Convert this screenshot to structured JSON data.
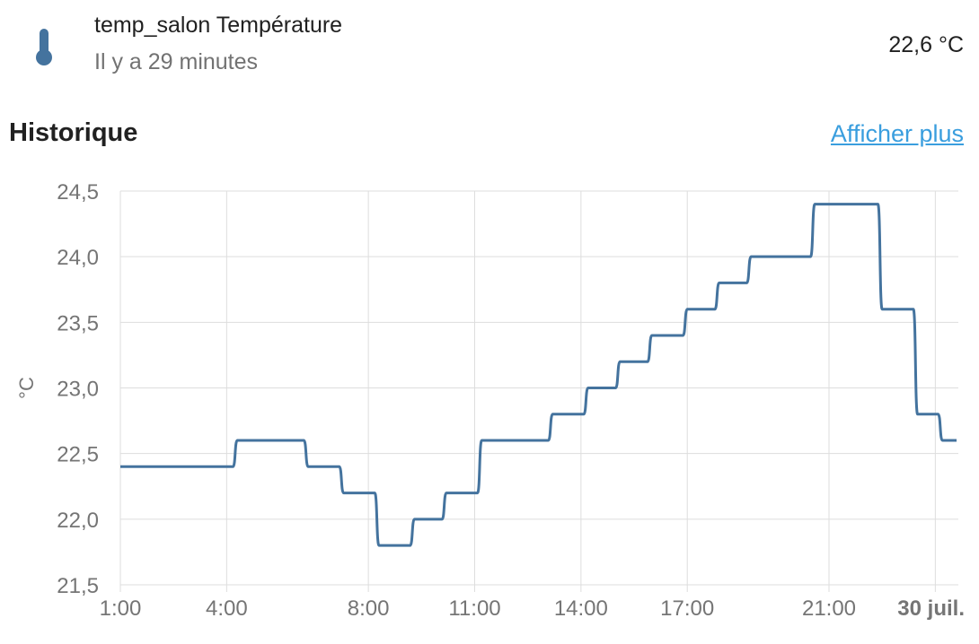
{
  "entity": {
    "name": "temp_salon Température",
    "last_changed": "Il y a 29 minutes",
    "state": "22,6 °C",
    "icon": "thermometer-icon",
    "icon_color": "#44739e"
  },
  "history": {
    "title": "Historique",
    "show_more": "Afficher plus"
  },
  "chart_data": {
    "type": "line",
    "step": true,
    "ylabel": "°C",
    "xlabel": "",
    "ylim": [
      21.5,
      24.5
    ],
    "yticks": [
      "21,5",
      "22,0",
      "22,5",
      "23,0",
      "23,5",
      "24,0",
      "24,5"
    ],
    "xticks": [
      "1:00",
      "4:00",
      "8:00",
      "11:00",
      "14:00",
      "17:00",
      "21:00",
      "30 juil."
    ],
    "grid": true,
    "line_color": "#44739e",
    "series": [
      {
        "x_hours": [
          1.0,
          4.3,
          6.3,
          7.3,
          8.3,
          9.3,
          10.2,
          11.2,
          13.2,
          14.2,
          15.1,
          16.0,
          17.0,
          17.9,
          18.8,
          20.6,
          22.5,
          23.5,
          24.2,
          24.6
        ],
        "values": [
          22.4,
          22.6,
          22.4,
          22.2,
          21.8,
          22.0,
          22.2,
          22.6,
          22.8,
          23.0,
          23.2,
          23.4,
          23.6,
          23.8,
          24.0,
          24.4,
          23.6,
          22.8,
          22.6,
          22.6
        ]
      }
    ]
  }
}
